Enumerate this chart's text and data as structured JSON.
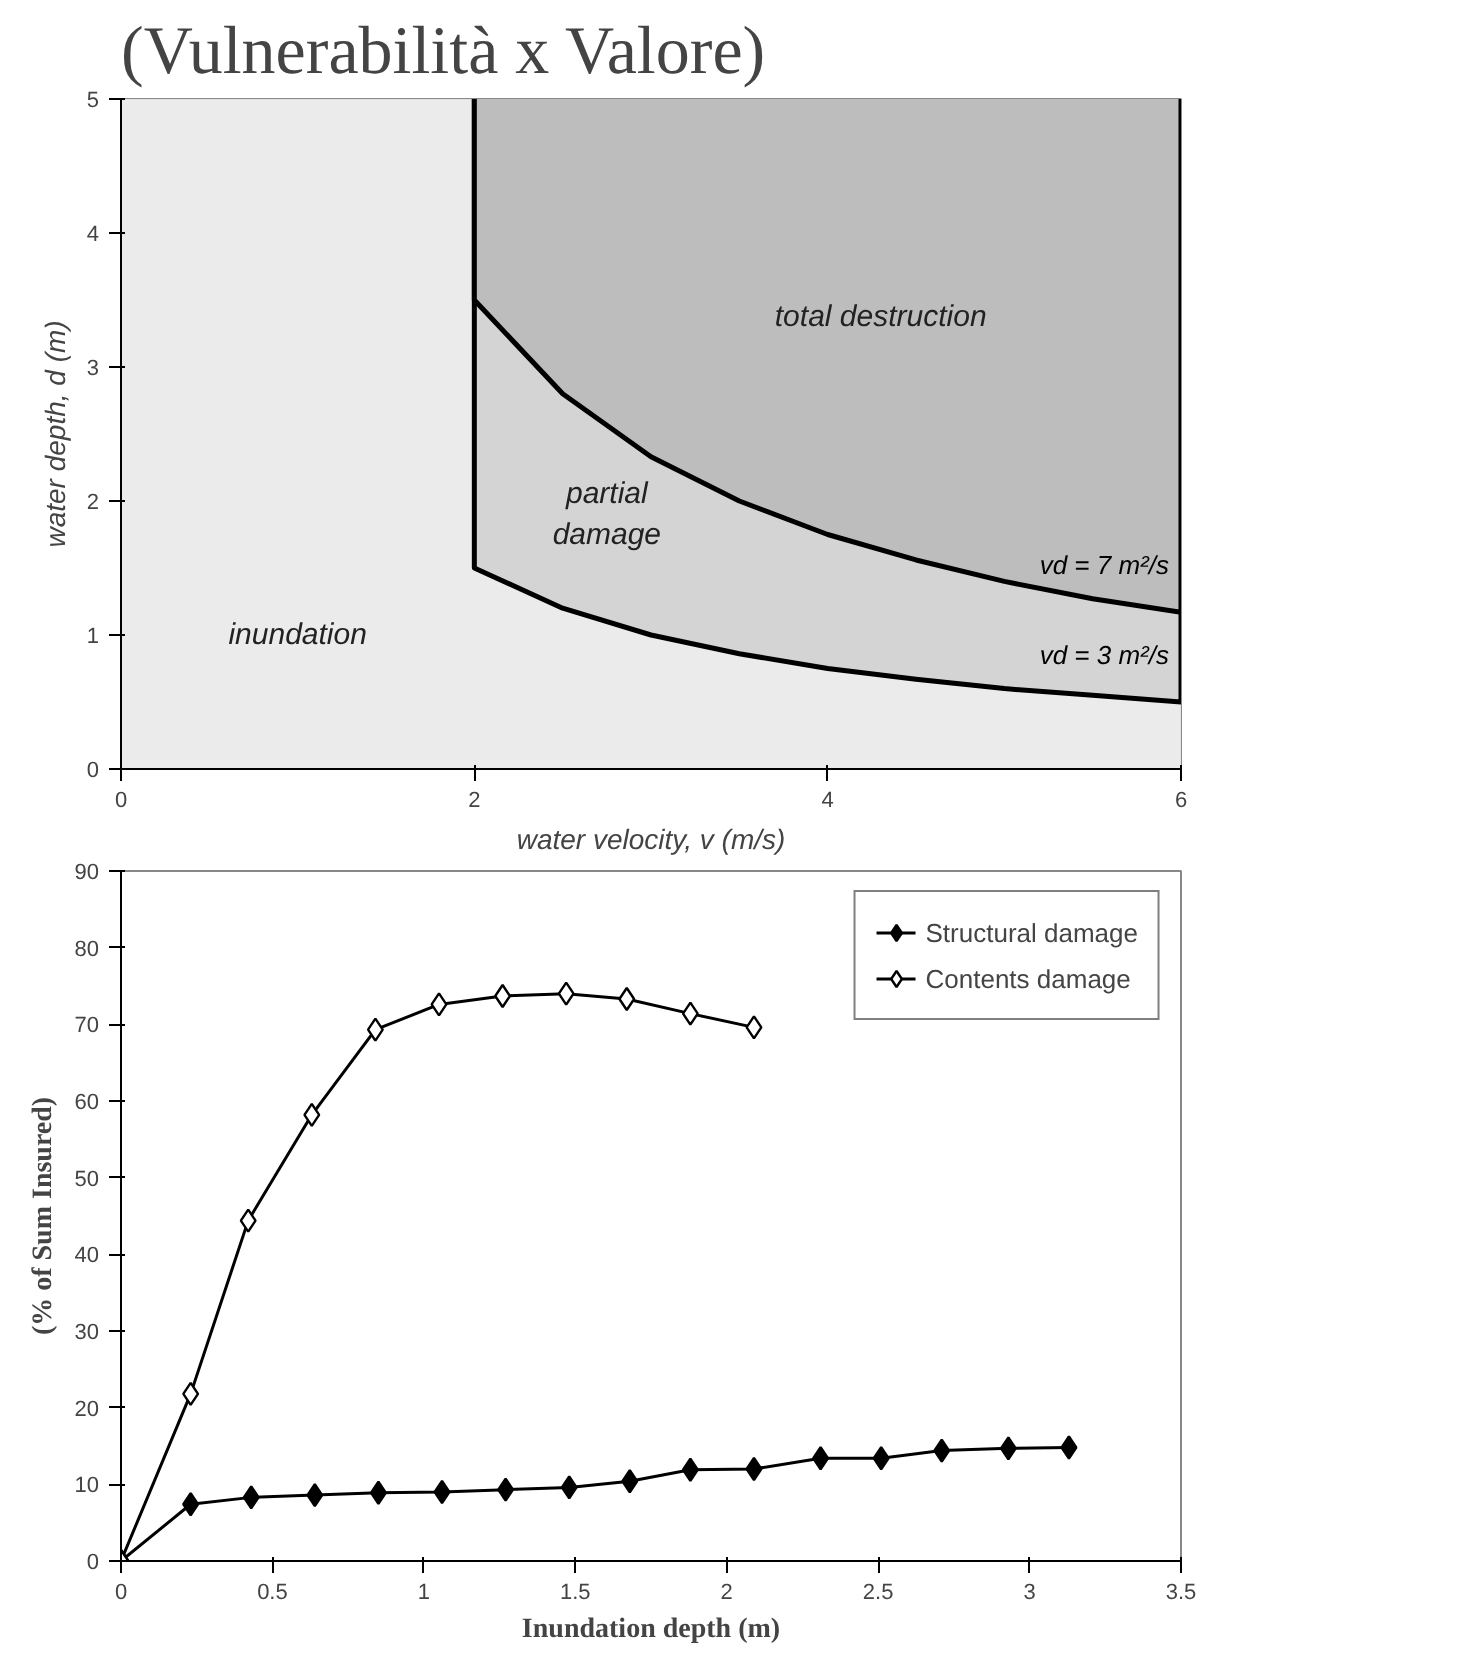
{
  "chart_data": [
    {
      "type": "area",
      "title": "(Vulnerabilità x Valore)",
      "xlabel": "water velocity, v (m/s)",
      "ylabel": "water depth, d (m)",
      "xlim": [
        0,
        6
      ],
      "ylim": [
        0,
        5
      ],
      "xticks": [
        0,
        2,
        4,
        6
      ],
      "yticks": [
        0,
        1,
        2,
        3,
        4,
        5
      ],
      "grid": false,
      "bands": [
        {
          "axis": "x",
          "from": 0,
          "to": 6,
          "color": "#ebebeb"
        }
      ],
      "series": [
        {
          "name": "vd = 3 m²/s",
          "color": "#d4d4d4",
          "x": [
            2,
            2,
            2.5,
            3,
            3.5,
            4,
            4.5,
            5,
            5.5,
            6,
            6
          ],
          "values": [
            5,
            1.5,
            1.2,
            1,
            0.86,
            0.75,
            0.67,
            0.6,
            0.55,
            0.5,
            5
          ]
        },
        {
          "name": "vd = 7 m²/s",
          "color": "#bdbdbd",
          "x": [
            2,
            2,
            2.5,
            3,
            3.5,
            4,
            4.5,
            5,
            5.5,
            6,
            6
          ],
          "values": [
            5,
            3.5,
            2.8,
            2.33,
            2,
            1.75,
            1.56,
            1.4,
            1.27,
            1.17,
            5
          ]
        }
      ],
      "annotations": [
        "inundation",
        "partial\ndamage",
        "total destruction"
      ]
    },
    {
      "type": "line",
      "xlabel": "Inundation depth (m)",
      "ylabel": "(% of Sum Insured)",
      "xlim": [
        0,
        3.5
      ],
      "ylim": [
        0,
        90
      ],
      "xticks": [
        0,
        0.5,
        1,
        1.5,
        2,
        2.5,
        3,
        3.5
      ],
      "yticks": [
        0,
        10,
        20,
        30,
        40,
        50,
        60,
        70,
        80,
        90
      ],
      "grid": false,
      "legend": "top right",
      "marker": "diamond",
      "line_style": "solid",
      "series": [
        {
          "name": "Structural damage",
          "color": "#000000",
          "x": [
            0,
            0.23,
            0.43,
            0.64,
            0.85,
            1.06,
            1.27,
            1.48,
            1.68,
            1.88,
            2.09,
            2.31,
            2.51,
            2.71,
            2.93,
            3.13
          ],
          "values": [
            0,
            7.4,
            8.3,
            8.6,
            8.9,
            9,
            9.3,
            9.6,
            10.4,
            11.9,
            12,
            13.4,
            13.4,
            14.4,
            14.7,
            14.8
          ]
        },
        {
          "name": "Contents damage",
          "color": "#000000",
          "x": [
            0,
            0.23,
            0.42,
            0.63,
            0.84,
            1.05,
            1.26,
            1.47,
            1.67,
            1.88,
            2.09
          ],
          "values": [
            0,
            21.8,
            44.4,
            58.2,
            69.3,
            72.6,
            73.7,
            74,
            73.3,
            71.4,
            69.6
          ]
        }
      ]
    }
  ]
}
